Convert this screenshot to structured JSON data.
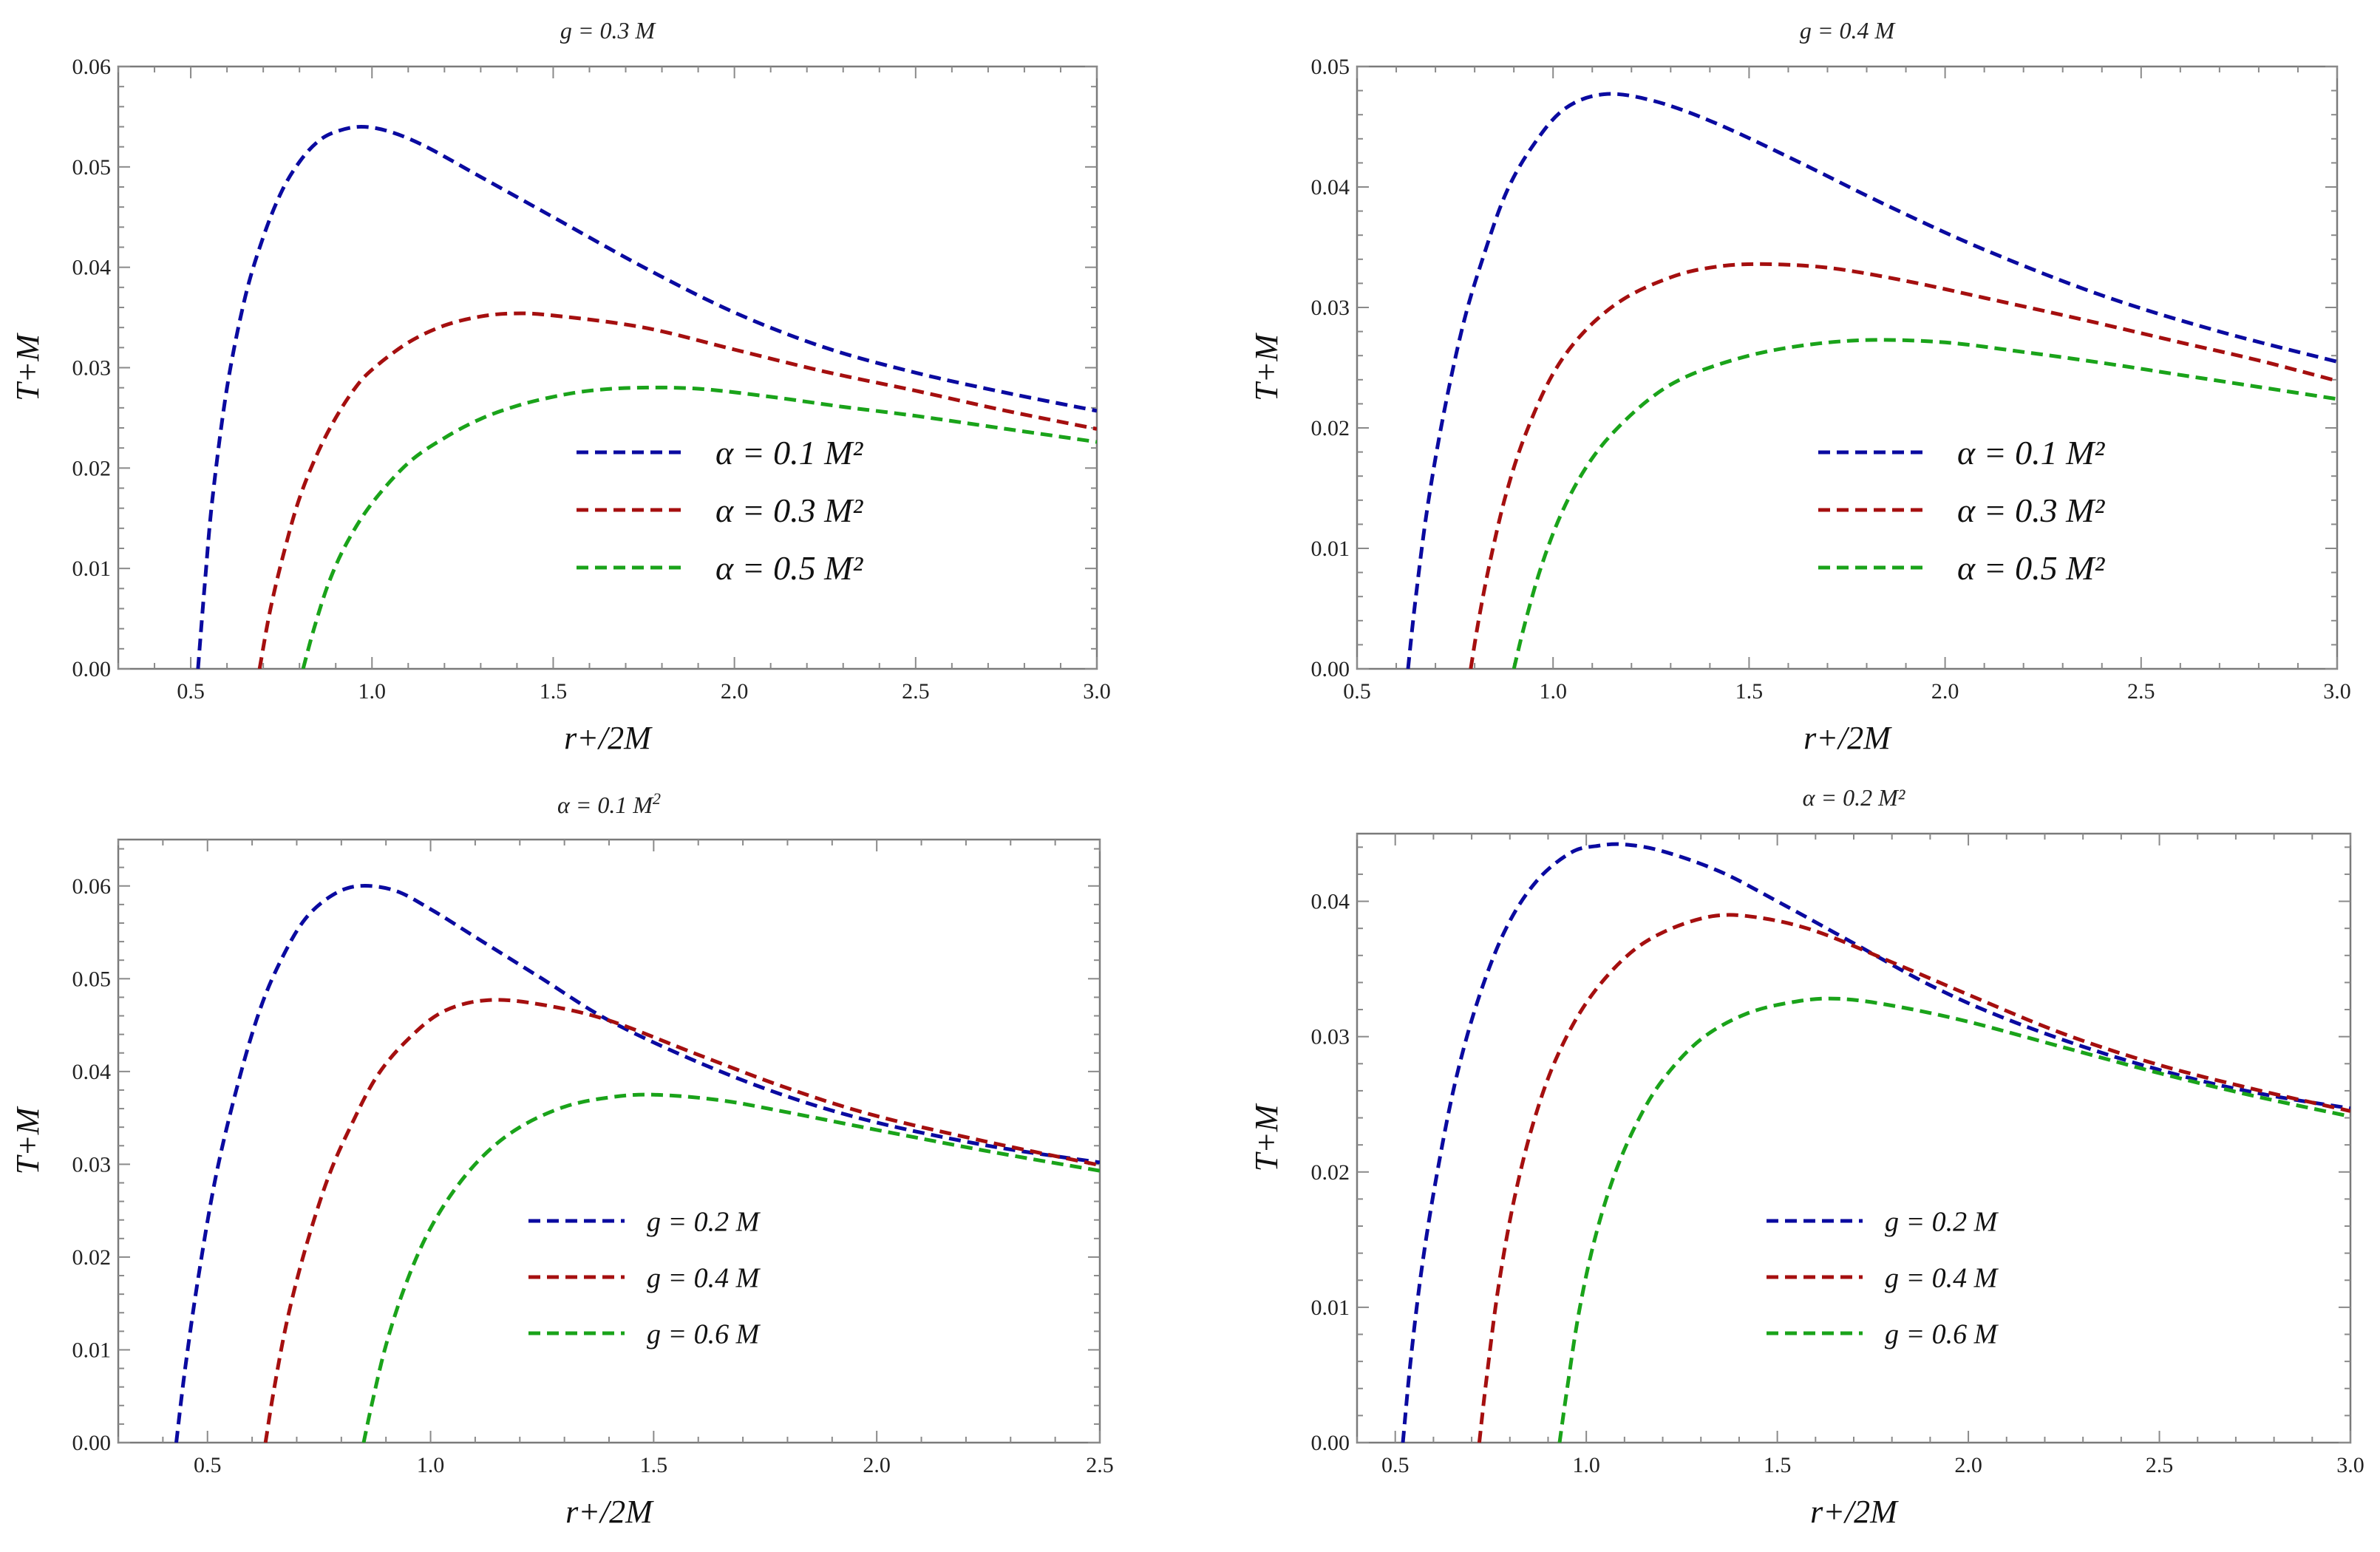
{
  "chart_data": [
    {
      "type": "line",
      "title": "g = 0.3 M",
      "xlabel": "r+/2M",
      "ylabel": "T+M",
      "xlim": [
        0.3,
        3.0
      ],
      "ylim": [
        0,
        0.06
      ],
      "xticks": [
        0.5,
        1.0,
        1.5,
        2.0,
        2.5,
        3.0
      ],
      "xtick_labels": [
        "0.5",
        "1.0",
        "1.5",
        "2.0",
        "2.5",
        "3.0"
      ],
      "yticks": [
        0,
        0.01,
        0.02,
        0.03,
        0.04,
        0.05,
        0.06
      ],
      "ytick_labels": [
        "0.00",
        "0.01",
        "0.02",
        "0.03",
        "0.04",
        "0.05",
        "0.06"
      ],
      "legend_position": "center-right",
      "legend_size": "large",
      "series": [
        {
          "name": "α = 0.1 M²",
          "color": "#0a0aa0",
          "x": [
            0.52,
            0.54,
            0.56,
            0.6,
            0.65,
            0.7,
            0.75,
            0.8,
            0.85,
            0.9,
            0.97,
            1.05,
            1.15,
            1.3,
            1.5,
            1.75,
            2.0,
            2.25,
            2.5,
            2.75,
            3.0
          ],
          "y": [
            0.0,
            0.009,
            0.017,
            0.028,
            0.037,
            0.043,
            0.0475,
            0.0505,
            0.0525,
            0.0535,
            0.054,
            0.0535,
            0.052,
            0.049,
            0.045,
            0.04,
            0.0355,
            0.032,
            0.0295,
            0.0275,
            0.0257
          ]
        },
        {
          "name": "α = 0.3 M²",
          "color": "#a50f0f",
          "x": [
            0.69,
            0.72,
            0.76,
            0.8,
            0.85,
            0.9,
            0.95,
            1.0,
            1.1,
            1.2,
            1.3,
            1.39,
            1.5,
            1.75,
            2.0,
            2.25,
            2.5,
            2.75,
            3.0
          ],
          "y": [
            0.0,
            0.006,
            0.012,
            0.017,
            0.0215,
            0.025,
            0.0278,
            0.0298,
            0.0325,
            0.0342,
            0.0351,
            0.0354,
            0.0352,
            0.034,
            0.0318,
            0.0296,
            0.0277,
            0.0257,
            0.0239
          ]
        },
        {
          "name": "α = 0.5 M²",
          "color": "#1aa31a",
          "x": [
            0.81,
            0.84,
            0.88,
            0.93,
            1.0,
            1.1,
            1.2,
            1.3,
            1.4,
            1.5,
            1.6,
            1.73,
            1.9,
            2.1,
            2.3,
            2.5,
            2.75,
            3.0
          ],
          "y": [
            0.0,
            0.004,
            0.0085,
            0.0125,
            0.0165,
            0.0205,
            0.023,
            0.0249,
            0.0262,
            0.0271,
            0.0277,
            0.028,
            0.0279,
            0.0271,
            0.0261,
            0.0252,
            0.0239,
            0.0226
          ]
        }
      ]
    },
    {
      "type": "line",
      "title": "g = 0.4 M",
      "xlabel": "r+/2M",
      "ylabel": "T+M",
      "xlim": [
        0.5,
        3.0
      ],
      "ylim": [
        0,
        0.05
      ],
      "xticks": [
        0.5,
        1.0,
        1.5,
        2.0,
        2.5,
        3.0
      ],
      "xtick_labels": [
        "0.5",
        "1.0",
        "1.5",
        "2.0",
        "2.5",
        "3.0"
      ],
      "yticks": [
        0,
        0.01,
        0.02,
        0.03,
        0.04,
        0.05
      ],
      "ytick_labels": [
        "0.00",
        "0.01",
        "0.02",
        "0.03",
        "0.04",
        "0.05"
      ],
      "legend_position": "center-right",
      "legend_size": "large",
      "series": [
        {
          "name": "α = 0.1 M²",
          "color": "#0a0aa0",
          "x": [
            0.63,
            0.65,
            0.68,
            0.72,
            0.77,
            0.82,
            0.88,
            0.95,
            1.03,
            1.13,
            1.25,
            1.4,
            1.6,
            1.85,
            2.1,
            2.4,
            2.7,
            3.0
          ],
          "y": [
            0.0,
            0.006,
            0.0135,
            0.021,
            0.0285,
            0.034,
            0.0395,
            0.0435,
            0.0465,
            0.0477,
            0.0472,
            0.0455,
            0.0425,
            0.0385,
            0.0348,
            0.031,
            0.028,
            0.0255
          ]
        },
        {
          "name": "α = 0.3 M²",
          "color": "#a50f0f",
          "x": [
            0.79,
            0.81,
            0.84,
            0.88,
            0.93,
            1.0,
            1.08,
            1.18,
            1.3,
            1.4,
            1.52,
            1.7,
            1.9,
            2.1,
            2.35,
            2.6,
            2.8,
            3.0
          ],
          "y": [
            0.0,
            0.004,
            0.009,
            0.0145,
            0.0195,
            0.0245,
            0.028,
            0.0307,
            0.0325,
            0.0333,
            0.0336,
            0.0333,
            0.0322,
            0.0308,
            0.029,
            0.0271,
            0.0256,
            0.0239
          ]
        },
        {
          "name": "α = 0.5 M²",
          "color": "#1aa31a",
          "x": [
            0.9,
            0.93,
            0.97,
            1.02,
            1.08,
            1.15,
            1.25,
            1.35,
            1.5,
            1.65,
            1.81,
            2.0,
            2.2,
            2.4,
            2.6,
            2.8,
            3.0
          ],
          "y": [
            0.0,
            0.004,
            0.0085,
            0.0128,
            0.0165,
            0.0195,
            0.0225,
            0.0244,
            0.026,
            0.0269,
            0.0273,
            0.0271,
            0.0263,
            0.0254,
            0.0244,
            0.0234,
            0.0224
          ]
        }
      ]
    },
    {
      "type": "line",
      "title": "α = 0.1 M",
      "title_superscript": "2",
      "xlabel": "r+/2M",
      "ylabel": "T+M",
      "xlim": [
        0.3,
        2.5
      ],
      "ylim": [
        0,
        0.065
      ],
      "xticks": [
        0.5,
        1.0,
        1.5,
        2.0,
        2.5
      ],
      "xtick_labels": [
        "0.5",
        "1.0",
        "1.5",
        "2.0",
        "2.5"
      ],
      "yticks": [
        0,
        0.01,
        0.02,
        0.03,
        0.04,
        0.05,
        0.06
      ],
      "ytick_labels": [
        "0.00",
        "0.01",
        "0.02",
        "0.03",
        "0.04",
        "0.05",
        "0.06"
      ],
      "legend_position": "lower-center",
      "legend_size": "small",
      "series": [
        {
          "name": "g = 0.2 M",
          "color": "#0a0aa0",
          "x": [
            0.43,
            0.45,
            0.48,
            0.52,
            0.57,
            0.62,
            0.67,
            0.72,
            0.78,
            0.84,
            0.92,
            1.0,
            1.1,
            1.25,
            1.4,
            1.6,
            1.8,
            2.0,
            2.25,
            2.5
          ],
          "y": [
            0.0,
            0.008,
            0.018,
            0.029,
            0.039,
            0.047,
            0.0525,
            0.0565,
            0.059,
            0.06,
            0.0595,
            0.0575,
            0.0545,
            0.05,
            0.0455,
            0.041,
            0.0373,
            0.0345,
            0.032,
            0.0302
          ]
        },
        {
          "name": "g = 0.4 M",
          "color": "#a50f0f",
          "x": [
            0.63,
            0.65,
            0.68,
            0.72,
            0.77,
            0.82,
            0.88,
            0.95,
            1.03,
            1.13,
            1.25,
            1.4,
            1.6,
            1.8,
            2.0,
            2.25,
            2.5
          ],
          "y": [
            0.0,
            0.006,
            0.0135,
            0.021,
            0.0285,
            0.034,
            0.0395,
            0.0435,
            0.0465,
            0.0477,
            0.0472,
            0.0455,
            0.0418,
            0.0382,
            0.0352,
            0.0324,
            0.0299
          ]
        },
        {
          "name": "g = 0.6 M",
          "color": "#1aa31a",
          "x": [
            0.85,
            0.87,
            0.9,
            0.94,
            0.99,
            1.05,
            1.12,
            1.2,
            1.3,
            1.4,
            1.5,
            1.65,
            1.8,
            2.0,
            2.25,
            2.5
          ],
          "y": [
            0.0,
            0.0045,
            0.0105,
            0.0165,
            0.0222,
            0.027,
            0.031,
            0.034,
            0.0362,
            0.0372,
            0.0375,
            0.0369,
            0.0356,
            0.0337,
            0.0314,
            0.0293
          ]
        }
      ]
    },
    {
      "type": "line",
      "title": "α = 0.2 M²",
      "xlabel": "r+/2M",
      "ylabel": "T+M",
      "xlim": [
        0.4,
        3.0
      ],
      "ylim": [
        0,
        0.045
      ],
      "xticks": [
        0.5,
        1.0,
        1.5,
        2.0,
        2.5,
        3.0
      ],
      "xtick_labels": [
        "0.5",
        "1.0",
        "1.5",
        "2.0",
        "2.5",
        "3.0"
      ],
      "yticks": [
        0,
        0.01,
        0.02,
        0.03,
        0.04
      ],
      "ytick_labels": [
        "0.00",
        "0.01",
        "0.02",
        "0.03",
        "0.04"
      ],
      "legend_position": "lower-center",
      "legend_size": "small",
      "series": [
        {
          "name": "g = 0.2 M",
          "color": "#0a0aa0",
          "x": [
            0.52,
            0.54,
            0.57,
            0.61,
            0.66,
            0.72,
            0.79,
            0.87,
            0.96,
            1.03,
            1.1,
            1.2,
            1.35,
            1.5,
            1.7,
            1.9,
            2.1,
            2.35,
            2.6,
            2.8,
            3.0
          ],
          "y": [
            0.0,
            0.006,
            0.013,
            0.02,
            0.027,
            0.033,
            0.038,
            0.0415,
            0.0436,
            0.0441,
            0.0442,
            0.0437,
            0.0422,
            0.04,
            0.0369,
            0.0338,
            0.0313,
            0.0288,
            0.0268,
            0.0256,
            0.0247
          ]
        },
        {
          "name": "g = 0.4 M",
          "color": "#a50f0f",
          "x": [
            0.72,
            0.74,
            0.77,
            0.81,
            0.86,
            0.92,
            1.0,
            1.1,
            1.2,
            1.33,
            1.45,
            1.6,
            1.8,
            2.0,
            2.25,
            2.5,
            2.75,
            3.0
          ],
          "y": [
            0.0,
            0.005,
            0.0115,
            0.0178,
            0.0235,
            0.0283,
            0.0325,
            0.0358,
            0.0377,
            0.0389,
            0.0388,
            0.0378,
            0.0355,
            0.0331,
            0.0302,
            0.0279,
            0.0261,
            0.0245
          ]
        },
        {
          "name": "g = 0.6 M",
          "color": "#1aa31a",
          "x": [
            0.93,
            0.95,
            0.98,
            1.02,
            1.07,
            1.13,
            1.2,
            1.3,
            1.42,
            1.55,
            1.66,
            1.8,
            2.0,
            2.25,
            2.5,
            2.75,
            3.0
          ],
          "y": [
            0.0,
            0.004,
            0.0095,
            0.0148,
            0.0195,
            0.0235,
            0.0268,
            0.0298,
            0.0317,
            0.0326,
            0.0328,
            0.0323,
            0.0311,
            0.0292,
            0.0273,
            0.0256,
            0.0241
          ]
        }
      ]
    }
  ]
}
